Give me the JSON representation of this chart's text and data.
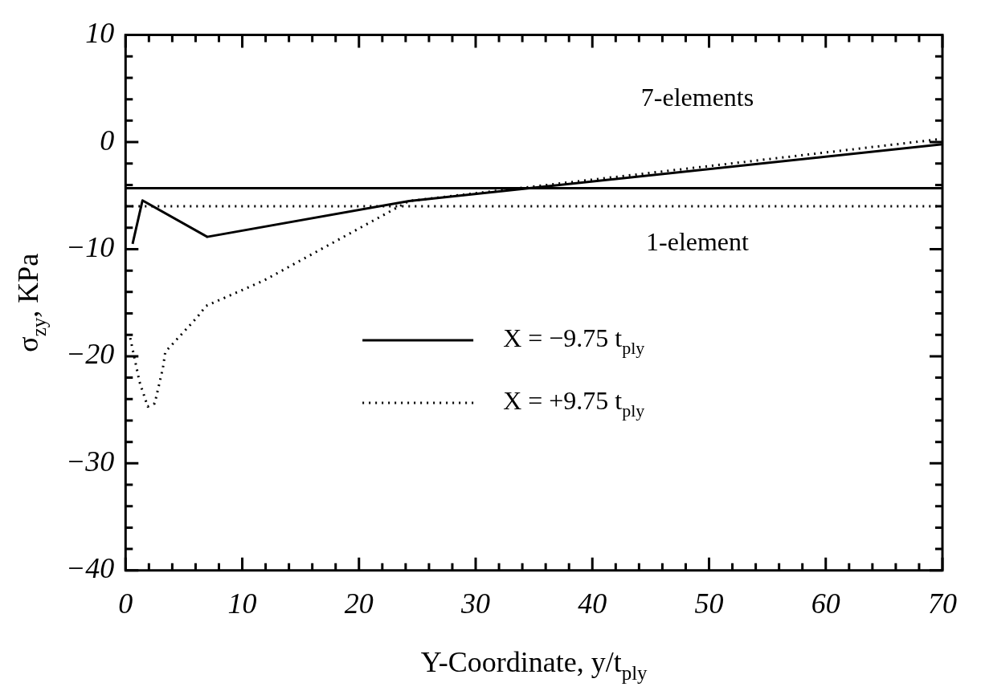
{
  "chart_data": {
    "type": "line",
    "xlabel": "Y-Coordinate, y/t$_{ply}$",
    "ylabel": "σ$_{zy}$, KPa",
    "xlim": [
      0,
      70
    ],
    "xticks": [
      0,
      10,
      20,
      30,
      40,
      50,
      60,
      70
    ],
    "ylim": [
      -40,
      10
    ],
    "yticks": [
      -40,
      -30,
      -20,
      -10,
      0,
      10
    ],
    "legend": "center",
    "series": [
      {
        "name": "X = −9.75 t$_{ply}$",
        "color": "#000000",
        "line_style": "solid",
        "x": [
          0.6,
          1.45,
          7.0,
          24.3,
          70
        ],
        "values": [
          -9.5,
          -5.45,
          -8.85,
          -5.5,
          -0.2
        ]
      },
      {
        "name": "X = +9.75 t$_{ply}$",
        "color": "#000000",
        "line_style": "dotted",
        "x": [
          0.4,
          1.2,
          1.9,
          2.5,
          3.2,
          3.4,
          6.1,
          6.9,
          11.9,
          24.3,
          70
        ],
        "values": [
          -18.3,
          -22.4,
          -24.7,
          -24.4,
          -21.1,
          -19.6,
          -16.4,
          -15.3,
          -12.9,
          -5.5,
          0.3
        ]
      }
    ],
    "ref_lines": [
      {
        "axis": "y",
        "value": -4.3,
        "line_style": "solid",
        "color": "#000000"
      },
      {
        "axis": "y",
        "value": -6,
        "line_style": "dotted",
        "color": "#000000"
      }
    ],
    "annotations": [
      "7-elements",
      "1-element"
    ]
  }
}
